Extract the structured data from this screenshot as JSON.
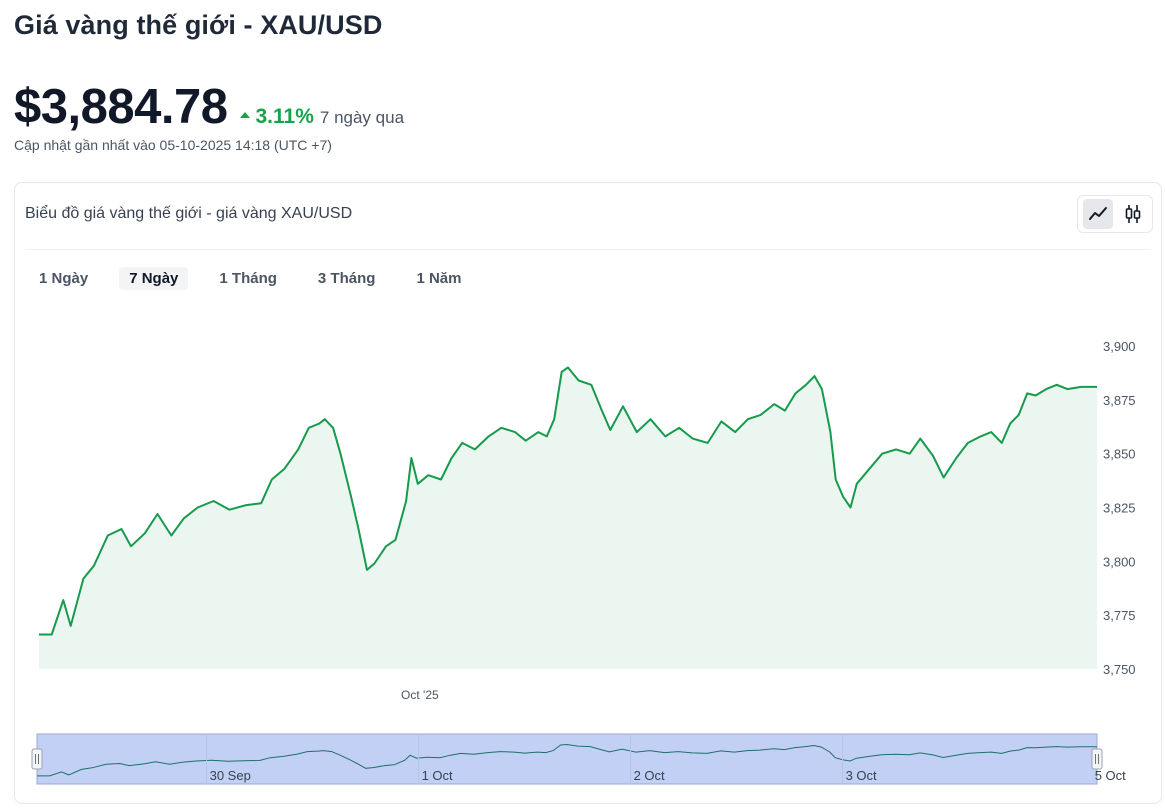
{
  "header": {
    "title": "Giá vàng thế giới - XAU/USD",
    "price": "$3,884.78",
    "change_pct": "3.11%",
    "change_period": "7 ngày qua",
    "updated": "Cập nhật gần nhất vào 05-10-2025 14:18 (UTC +7)"
  },
  "card": {
    "title": "Biểu đồ giá vàng thế giới - giá vàng XAU/USD",
    "chart_types": [
      {
        "icon": "line-chart-icon",
        "active": true
      },
      {
        "icon": "candlestick-icon",
        "active": false
      }
    ],
    "tabs": [
      {
        "label": "1 Ngày",
        "active": false
      },
      {
        "label": "7 Ngày",
        "active": true
      },
      {
        "label": "1 Tháng",
        "active": false
      },
      {
        "label": "3 Tháng",
        "active": false
      },
      {
        "label": "1 Năm",
        "active": false
      }
    ]
  },
  "colors": {
    "accent_green": "#16a34a",
    "line": "#169a4c",
    "area_fill": "#eaf6ef",
    "navigator_fill": "#c3d0f5"
  },
  "chart_data": {
    "type": "area",
    "title": "",
    "xlabel": "",
    "ylabel": "",
    "ylim": [
      3750,
      3900
    ],
    "y_ticks": [
      "3,750",
      "3,775",
      "3,800",
      "3,825",
      "3,850",
      "3,875",
      "3,900"
    ],
    "x_tick_labels": [
      "Oct '25"
    ],
    "x_tick_position": 0.36,
    "navigator_labels": [
      "30 Sep",
      "1 Oct",
      "2 Oct",
      "3 Oct",
      "5 Oct"
    ],
    "navigator_positions": [
      0.16,
      0.36,
      0.56,
      0.76,
      0.995
    ],
    "grid": false,
    "series": [
      {
        "points": [
          [
            0.0,
            3766
          ],
          [
            0.012,
            3766
          ],
          [
            0.023,
            3782
          ],
          [
            0.03,
            3770
          ],
          [
            0.042,
            3792
          ],
          [
            0.052,
            3798
          ],
          [
            0.065,
            3812
          ],
          [
            0.078,
            3815
          ],
          [
            0.087,
            3807
          ],
          [
            0.1,
            3813
          ],
          [
            0.112,
            3822
          ],
          [
            0.125,
            3812
          ],
          [
            0.137,
            3820
          ],
          [
            0.15,
            3825
          ],
          [
            0.165,
            3828
          ],
          [
            0.18,
            3824
          ],
          [
            0.195,
            3826
          ],
          [
            0.21,
            3827
          ],
          [
            0.22,
            3838
          ],
          [
            0.232,
            3843
          ],
          [
            0.245,
            3852
          ],
          [
            0.255,
            3862
          ],
          [
            0.265,
            3864
          ],
          [
            0.27,
            3866
          ],
          [
            0.278,
            3862
          ],
          [
            0.285,
            3850
          ],
          [
            0.295,
            3830
          ],
          [
            0.302,
            3815
          ],
          [
            0.31,
            3796
          ],
          [
            0.317,
            3799
          ],
          [
            0.328,
            3807
          ],
          [
            0.337,
            3810
          ],
          [
            0.347,
            3828
          ],
          [
            0.352,
            3848
          ],
          [
            0.358,
            3836
          ],
          [
            0.368,
            3840
          ],
          [
            0.38,
            3838
          ],
          [
            0.39,
            3848
          ],
          [
            0.4,
            3855
          ],
          [
            0.412,
            3852
          ],
          [
            0.425,
            3858
          ],
          [
            0.437,
            3862
          ],
          [
            0.45,
            3860
          ],
          [
            0.46,
            3856
          ],
          [
            0.472,
            3860
          ],
          [
            0.48,
            3858
          ],
          [
            0.487,
            3866
          ],
          [
            0.494,
            3888
          ],
          [
            0.5,
            3890
          ],
          [
            0.51,
            3884
          ],
          [
            0.522,
            3882
          ],
          [
            0.532,
            3870
          ],
          [
            0.54,
            3861
          ],
          [
            0.552,
            3872
          ],
          [
            0.565,
            3860
          ],
          [
            0.578,
            3866
          ],
          [
            0.592,
            3858
          ],
          [
            0.605,
            3862
          ],
          [
            0.618,
            3857
          ],
          [
            0.632,
            3855
          ],
          [
            0.645,
            3865
          ],
          [
            0.658,
            3860
          ],
          [
            0.67,
            3866
          ],
          [
            0.682,
            3868
          ],
          [
            0.695,
            3873
          ],
          [
            0.705,
            3870
          ],
          [
            0.715,
            3878
          ],
          [
            0.725,
            3882
          ],
          [
            0.733,
            3886
          ],
          [
            0.74,
            3880
          ],
          [
            0.748,
            3860
          ],
          [
            0.753,
            3838
          ],
          [
            0.76,
            3830
          ],
          [
            0.767,
            3825
          ],
          [
            0.773,
            3836
          ],
          [
            0.785,
            3843
          ],
          [
            0.797,
            3850
          ],
          [
            0.81,
            3852
          ],
          [
            0.823,
            3850
          ],
          [
            0.833,
            3857
          ],
          [
            0.845,
            3849
          ],
          [
            0.855,
            3839
          ],
          [
            0.867,
            3848
          ],
          [
            0.878,
            3855
          ],
          [
            0.89,
            3858
          ],
          [
            0.9,
            3860
          ],
          [
            0.91,
            3855
          ],
          [
            0.918,
            3864
          ],
          [
            0.926,
            3868
          ],
          [
            0.934,
            3878
          ],
          [
            0.942,
            3877
          ],
          [
            0.952,
            3880
          ],
          [
            0.962,
            3882
          ],
          [
            0.972,
            3880
          ],
          [
            0.985,
            3881
          ],
          [
            1.0,
            3881
          ]
        ]
      }
    ]
  }
}
